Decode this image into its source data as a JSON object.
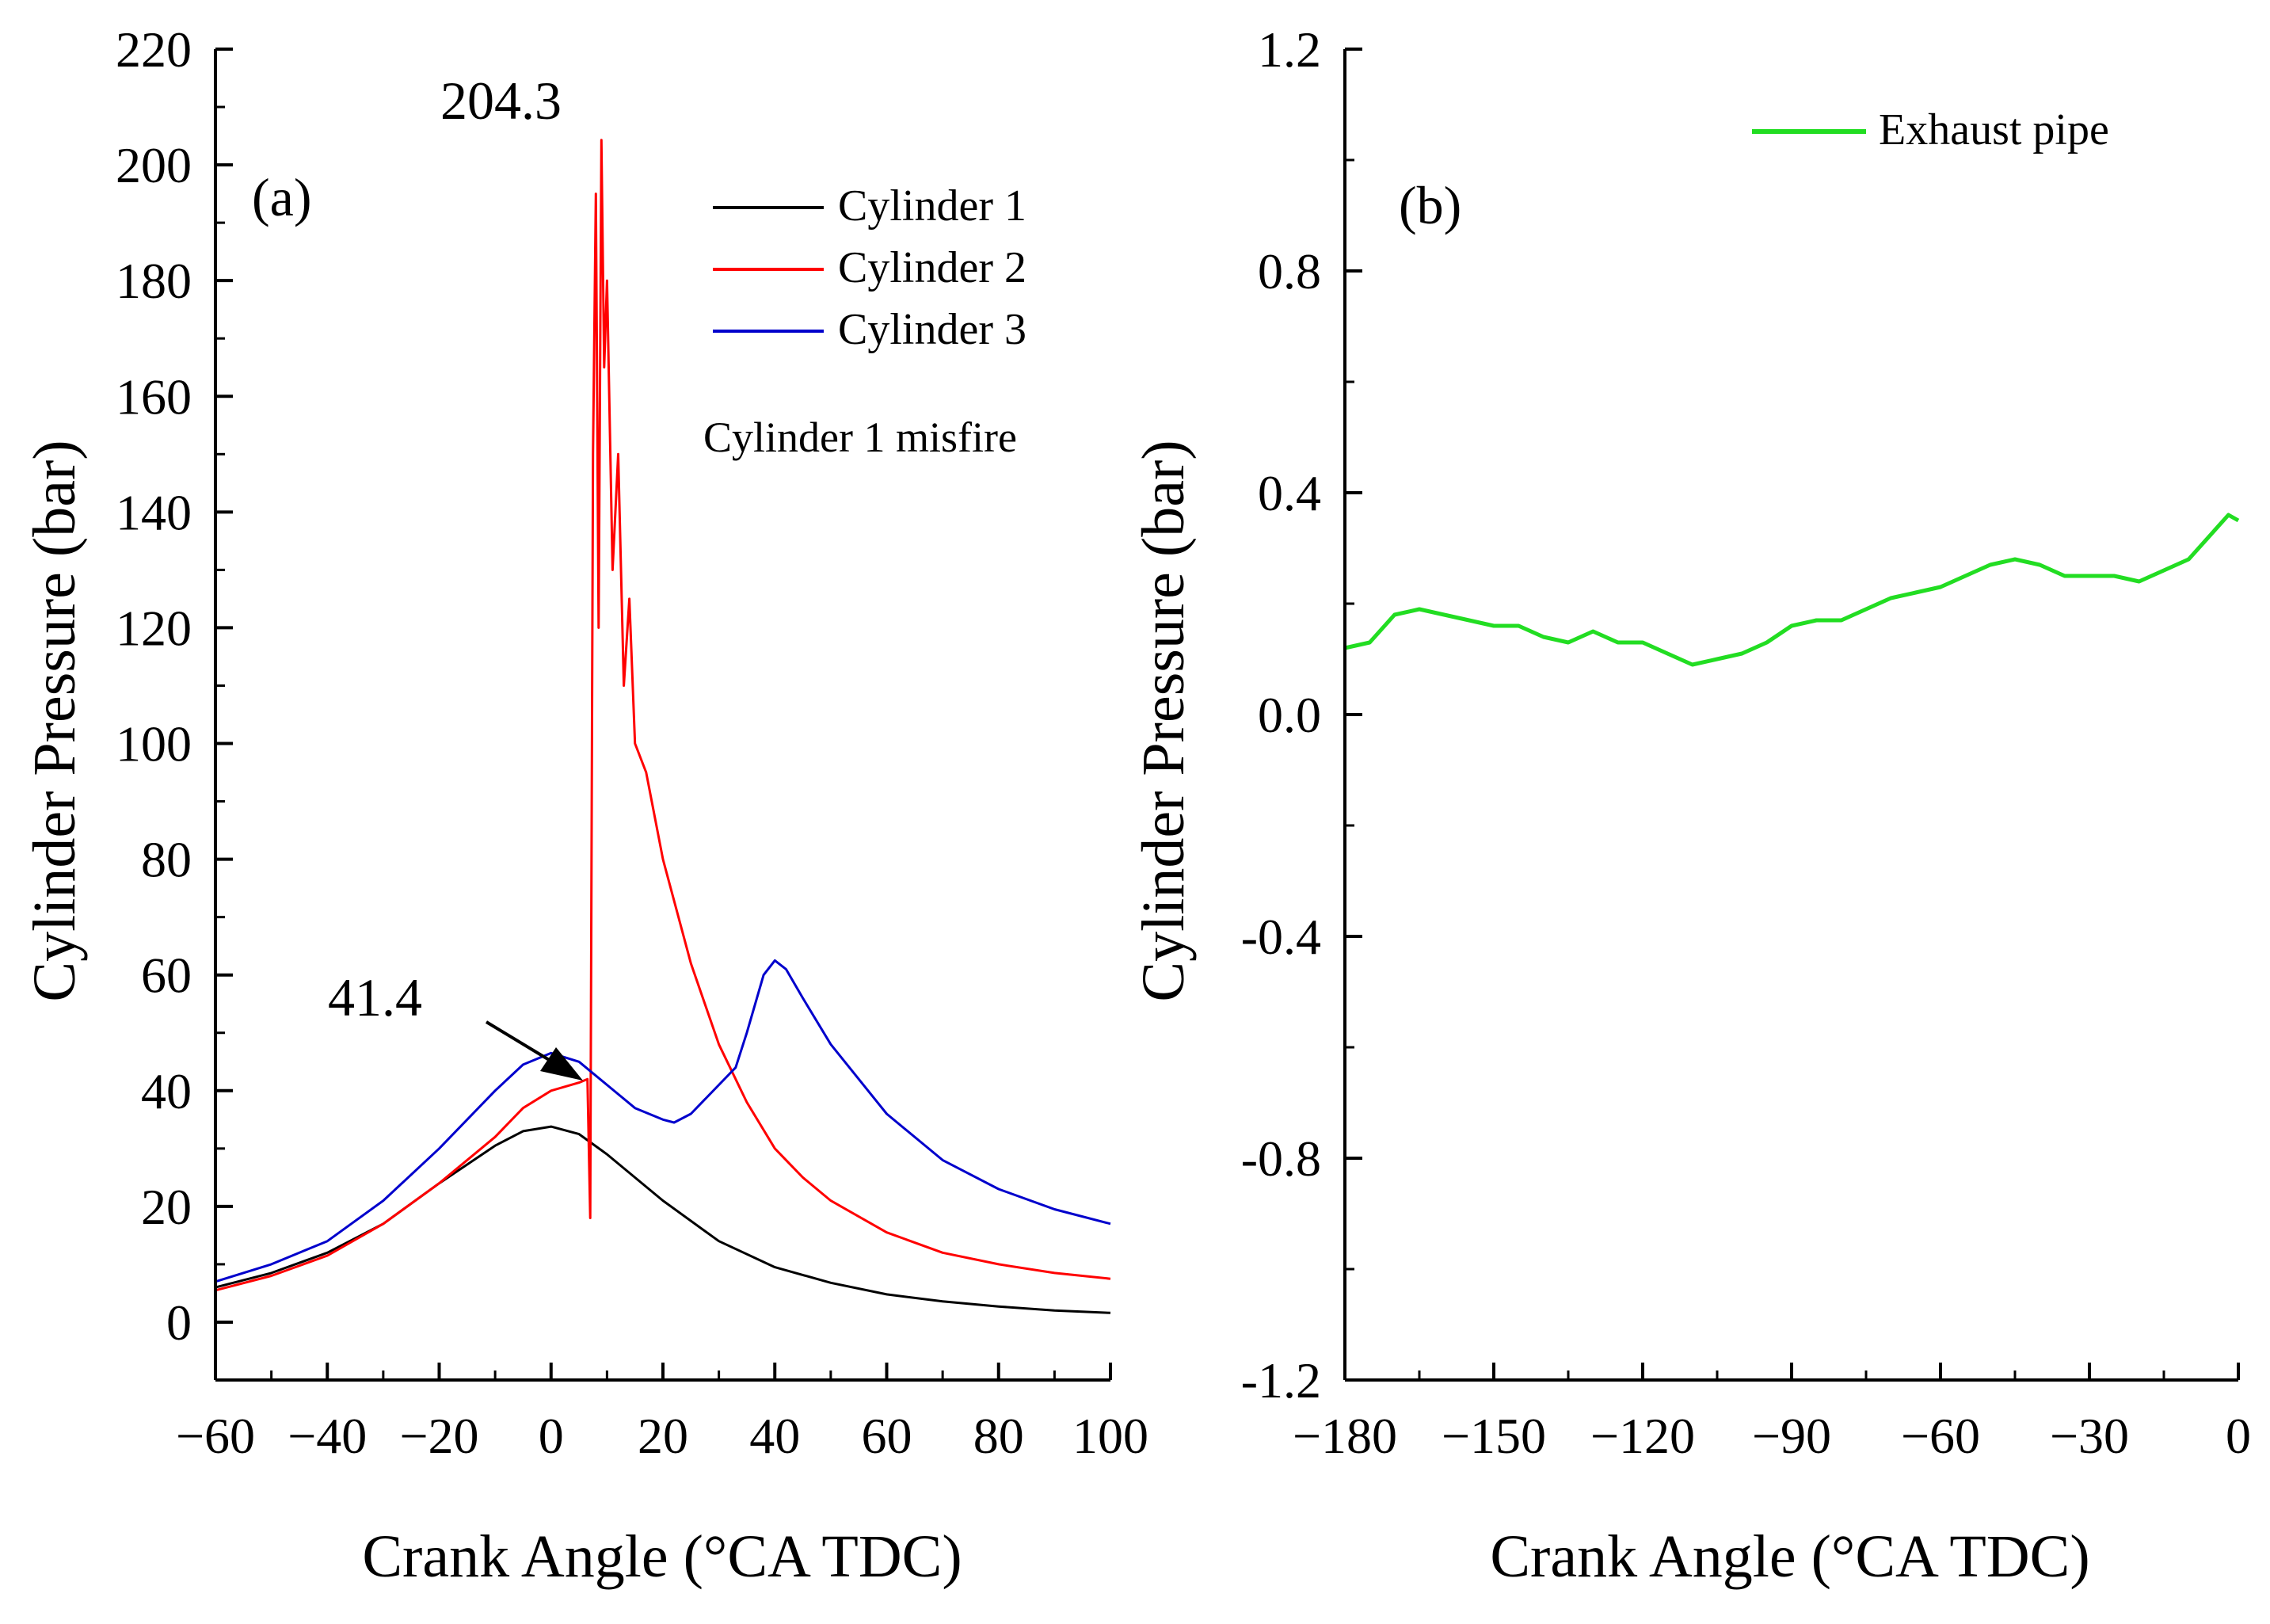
{
  "chart_data": [
    {
      "type": "line",
      "panel_label": "(a)",
      "xlabel": "Crank Angle (°CA TDC)",
      "ylabel": "Cylinder Pressure (bar)",
      "xlim": [
        -60,
        100
      ],
      "ylim": [
        -10,
        220
      ],
      "x_ticks": [
        -60,
        -40,
        -20,
        0,
        20,
        40,
        60,
        80,
        100
      ],
      "y_ticks": [
        0,
        20,
        40,
        60,
        80,
        100,
        120,
        140,
        160,
        180,
        200,
        220
      ],
      "grid": false,
      "legend_position": "top-right",
      "annotation_text": "Cylinder 1 misfire",
      "peak_labels": [
        {
          "text": "204.3",
          "x": 9,
          "y": 204.3
        },
        {
          "text": "41.4",
          "x": 6,
          "y": 41.4
        }
      ],
      "series": [
        {
          "name": "Cylinder 1",
          "color": "#000000",
          "x": [
            -60,
            -50,
            -40,
            -30,
            -20,
            -10,
            -5,
            0,
            5,
            10,
            20,
            30,
            40,
            50,
            60,
            70,
            80,
            90,
            100
          ],
          "y": [
            6,
            8.5,
            12,
            17,
            24,
            30.5,
            33,
            33.8,
            32.5,
            29,
            21,
            14,
            9.5,
            6.8,
            4.8,
            3.6,
            2.7,
            2.0,
            1.6
          ]
        },
        {
          "name": "Cylinder 2",
          "color": "#ff0000",
          "x": [
            -60,
            -50,
            -40,
            -30,
            -20,
            -10,
            -5,
            0,
            5,
            6.5,
            7,
            7.5,
            8,
            8.5,
            9,
            9.5,
            10,
            11,
            12,
            13,
            14,
            15,
            17,
            20,
            25,
            30,
            35,
            40,
            45,
            50,
            60,
            70,
            80,
            90,
            100
          ],
          "y": [
            5.5,
            8,
            11.5,
            17,
            24,
            32,
            37,
            40,
            41.4,
            42,
            18,
            150,
            195,
            120,
            204.3,
            165,
            180,
            130,
            150,
            110,
            125,
            100,
            95,
            80,
            62,
            48,
            38,
            30,
            25,
            21,
            15.5,
            12,
            10,
            8.5,
            7.5
          ]
        },
        {
          "name": "Cylinder 3",
          "color": "#0000cc",
          "x": [
            -60,
            -50,
            -40,
            -30,
            -20,
            -10,
            -5,
            0,
            5,
            10,
            15,
            20,
            22,
            25,
            30,
            33,
            35,
            38,
            40,
            42,
            45,
            50,
            60,
            70,
            80,
            90,
            100
          ],
          "y": [
            7,
            10,
            14,
            21,
            30,
            40,
            44.5,
            46.5,
            45,
            41,
            37,
            35,
            34.5,
            36,
            41,
            44,
            50,
            60,
            62.5,
            61,
            56,
            48,
            36,
            28,
            23,
            19.5,
            17
          ]
        }
      ]
    },
    {
      "type": "line",
      "panel_label": "(b)",
      "xlabel": "Crank Angle (°CA TDC)",
      "ylabel": "Cylinder Pressure (bar)",
      "xlim": [
        -180,
        0
      ],
      "ylim": [
        -1.2,
        1.2
      ],
      "x_ticks": [
        -180,
        -150,
        -120,
        -90,
        -60,
        -30,
        0
      ],
      "y_ticks": [
        -1.2,
        -0.8,
        -0.4,
        0.0,
        0.4,
        0.8,
        1.2
      ],
      "y_tick_labels": [
        "-1.2",
        "-0.8",
        "-0.4",
        "0.0",
        "0.4",
        "0.8",
        "1.2"
      ],
      "grid": false,
      "legend_position": "top-right",
      "series": [
        {
          "name": "Exhaust pipe",
          "color": "#22dd22",
          "x": [
            -180,
            -175,
            -170,
            -165,
            -160,
            -155,
            -150,
            -145,
            -140,
            -135,
            -130,
            -125,
            -120,
            -115,
            -110,
            -105,
            -100,
            -95,
            -90,
            -85,
            -80,
            -75,
            -70,
            -65,
            -60,
            -55,
            -50,
            -45,
            -40,
            -35,
            -30,
            -25,
            -20,
            -15,
            -10,
            -5,
            -2,
            0
          ],
          "y": [
            0.12,
            0.13,
            0.18,
            0.19,
            0.18,
            0.17,
            0.16,
            0.16,
            0.14,
            0.13,
            0.15,
            0.13,
            0.13,
            0.11,
            0.09,
            0.1,
            0.11,
            0.13,
            0.16,
            0.17,
            0.17,
            0.19,
            0.21,
            0.22,
            0.23,
            0.25,
            0.27,
            0.28,
            0.27,
            0.25,
            0.25,
            0.25,
            0.24,
            0.26,
            0.28,
            0.33,
            0.36,
            0.35
          ]
        }
      ]
    }
  ]
}
